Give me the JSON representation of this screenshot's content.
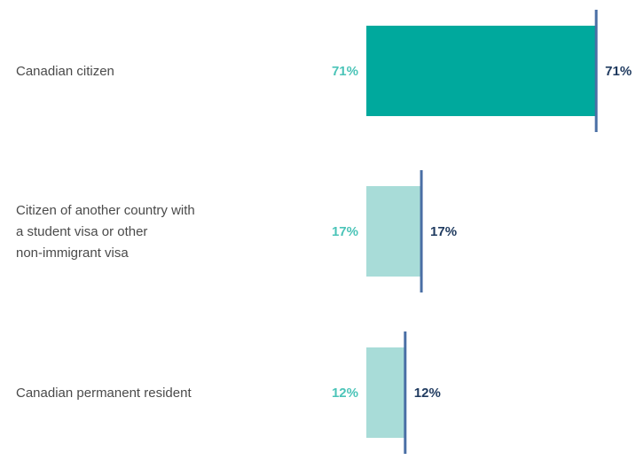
{
  "chart_data": {
    "type": "bar",
    "orientation": "horizontal",
    "categories": [
      "Canadian citizen",
      "Citizen of another country with a student visa or other non-immigrant visa",
      "Canadian permanent resident"
    ],
    "category_lines": [
      [
        "Canadian citizen"
      ],
      [
        "Citizen of another country with",
        "a student visa or other",
        "non-immigrant visa"
      ],
      [
        "Canadian permanent resident"
      ]
    ],
    "series": [
      {
        "values": [
          71,
          17,
          12
        ]
      },
      {
        "values": [
          71,
          17,
          12
        ]
      }
    ],
    "value_labels": [
      "71%",
      "17%",
      "12%"
    ],
    "comparison_labels": [
      "71%",
      "17%",
      "12%"
    ],
    "xlim": [
      0,
      100
    ],
    "grid": false,
    "legend": "none"
  },
  "colors": {
    "bar_primary": "#00a99d",
    "bar_light": "#a8dcd8",
    "marker": "#4a6fa5",
    "left_label": "#4bc4b8",
    "right_label": "#1f3a5f",
    "category_text": "#4a4a4a"
  }
}
